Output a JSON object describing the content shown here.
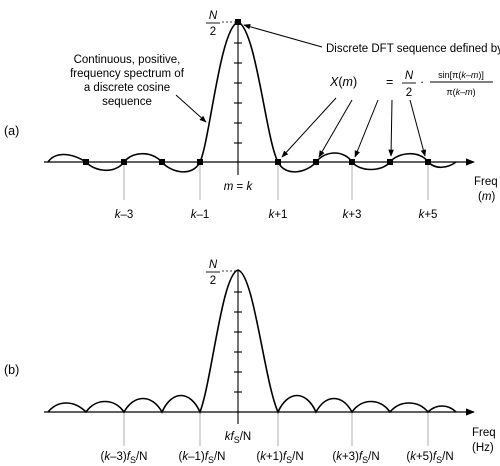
{
  "panel_a": {
    "label": "(a)",
    "peak": {
      "numerator": "N",
      "denominator": "2"
    },
    "curve_caption": [
      "Continuous, positive,",
      "frequency spectrum of",
      "a discrete cosine",
      "sequence"
    ],
    "dft_caption": "Discrete DFT sequence defined by",
    "formula": {
      "lhs_var": "X",
      "lhs_arg": "(",
      "lhs_m": "m",
      "lhs_close": ")",
      "equals": "=",
      "n": "N",
      "two": "2",
      "dot": "·",
      "sin_open": "sin[π(",
      "sin_k": "k",
      "sin_dash": "–",
      "sin_m": "m",
      "sin_close": ")]",
      "den_open": "π(",
      "den_k": "k",
      "den_dash": "–",
      "den_m": "m",
      "den_close": ")"
    },
    "center_label": {
      "m": "m",
      "eq": " = ",
      "k": "k"
    },
    "axis_freq": "Freq",
    "axis_unit": {
      "open": "(",
      "var": "m",
      "close": ")"
    },
    "ticks": [
      {
        "k": "k",
        "rest": "–3"
      },
      {
        "k": "k",
        "rest": "–1"
      },
      {
        "k": "k",
        "rest": "+1"
      },
      {
        "k": "k",
        "rest": "+3"
      },
      {
        "k": "k",
        "rest": "+5"
      }
    ]
  },
  "panel_b": {
    "label": "(b)",
    "peak": {
      "numerator": "N",
      "denominator": "2"
    },
    "center_label": {
      "k": "k",
      "f": "f",
      "s": "S",
      "n": "/N"
    },
    "axis_freq": "Freq",
    "axis_unit": "(Hz)",
    "ticks": [
      {
        "open": "(",
        "k": "k",
        "off": "–3)",
        "f": "f",
        "s": "S",
        "n": "/N"
      },
      {
        "open": "(",
        "k": "k",
        "off": "–1)",
        "f": "f",
        "s": "S",
        "n": "/N"
      },
      {
        "open": "(",
        "k": "k",
        "off": "+1)",
        "f": "f",
        "s": "S",
        "n": "/N"
      },
      {
        "open": "(",
        "k": "k",
        "off": "+3)",
        "f": "f",
        "s": "S",
        "n": "/N"
      },
      {
        "open": "(",
        "k": "k",
        "off": "+5)",
        "f": "f",
        "s": "S",
        "n": "/N"
      }
    ]
  }
}
